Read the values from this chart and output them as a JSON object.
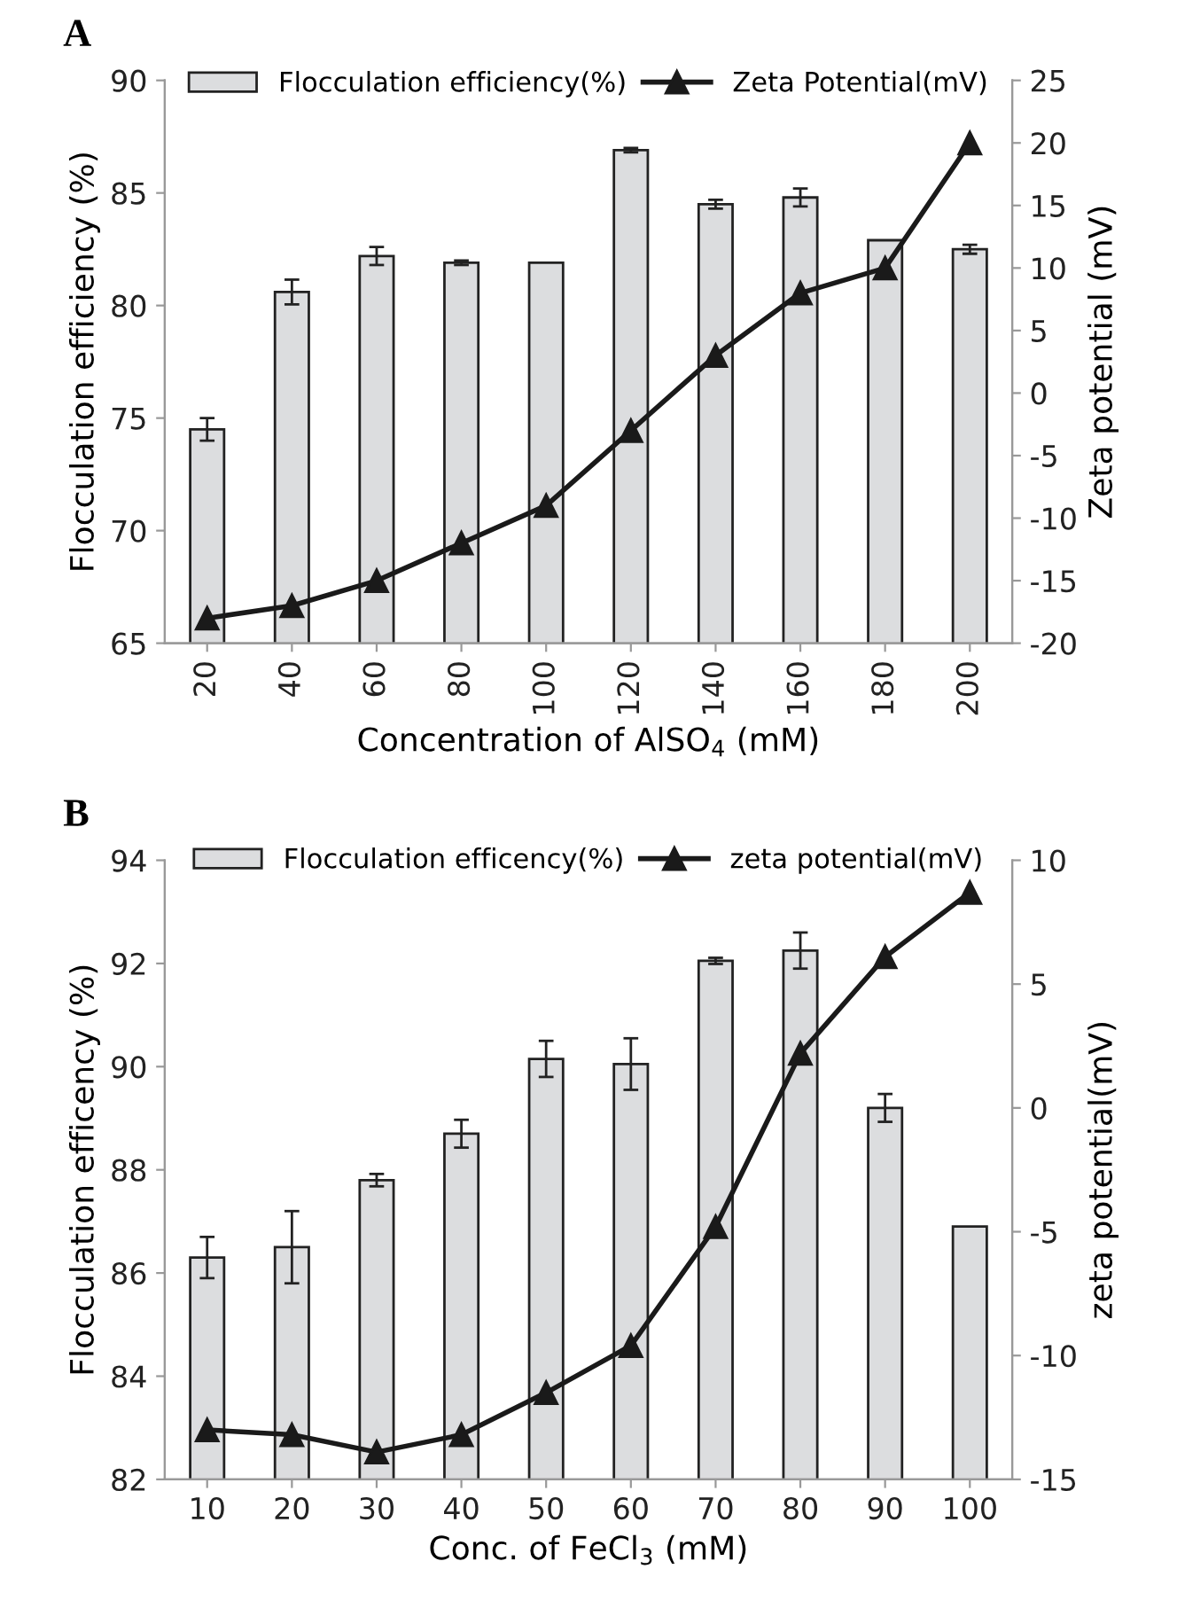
{
  "chart_data": [
    {
      "type": "bar",
      "title": "A",
      "xlabel": "Concentration of AlSO$_{4}$ (mM)",
      "ylabel": "Flocculation efficiency (%)",
      "y2label": "Zeta potential (mV)",
      "categories": [
        "20",
        "40",
        "60",
        "80",
        "100",
        "120",
        "140",
        "160",
        "180",
        "200"
      ],
      "series": [
        {
          "name": "Flocculation efficiency(%)",
          "color": "#dcdddf",
          "values": [
            74.5,
            80.6,
            82.2,
            81.9,
            81.9,
            86.9,
            84.5,
            84.8,
            82.9,
            82.5
          ],
          "errors": [
            0.5,
            0.55,
            0.4,
            0.1,
            null,
            0.1,
            0.2,
            0.4,
            null,
            0.2
          ]
        },
        {
          "name": "Zeta Potential(mV)",
          "type": "line",
          "axis": "y2",
          "color": "#1a1a1a",
          "marker": "triangle",
          "values": [
            -18,
            -17,
            -15,
            -12,
            -9,
            -3,
            3,
            8,
            10,
            20
          ]
        }
      ],
      "ylim": [
        65,
        90
      ],
      "yticks": [
        65,
        70,
        75,
        80,
        85,
        90
      ],
      "y2lim": [
        -20,
        25
      ],
      "y2ticks": [
        -20,
        -15,
        -10,
        -5,
        0,
        5,
        10,
        15,
        20,
        25
      ],
      "grid": false,
      "legend": "top"
    },
    {
      "type": "bar",
      "title": "B",
      "xlabel": "Conc. of FeCl$_{3}$ (mM)",
      "ylabel": "Flocculation efficency (%)",
      "y2label": "zeta potential(mV)",
      "categories": [
        "10",
        "20",
        "30",
        "40",
        "50",
        "60",
        "70",
        "80",
        "90",
        "100"
      ],
      "series": [
        {
          "name": "Flocculation efficency(%)",
          "color": "#dcdddf",
          "values": [
            86.3,
            86.5,
            87.8,
            88.7,
            90.15,
            90.05,
            92.05,
            92.25,
            89.2,
            86.9
          ],
          "errors": [
            0.4,
            0.7,
            0.12,
            0.27,
            0.35,
            0.5,
            0.06,
            0.35,
            0.27,
            null
          ]
        },
        {
          "name": "zeta potential(mV)",
          "type": "line",
          "axis": "y2",
          "color": "#1a1a1a",
          "marker": "triangle",
          "values": [
            -13,
            -13.2,
            -13.9,
            -13.2,
            -11.5,
            -9.6,
            -4.8,
            2.2,
            6.1,
            8.7
          ]
        }
      ],
      "ylim": [
        82,
        94
      ],
      "yticks": [
        82,
        84,
        86,
        88,
        90,
        92,
        94
      ],
      "y2lim": [
        -15,
        10
      ],
      "y2ticks": [
        -15,
        -10,
        -5,
        0,
        5,
        10
      ],
      "grid": false,
      "legend": "top"
    }
  ]
}
